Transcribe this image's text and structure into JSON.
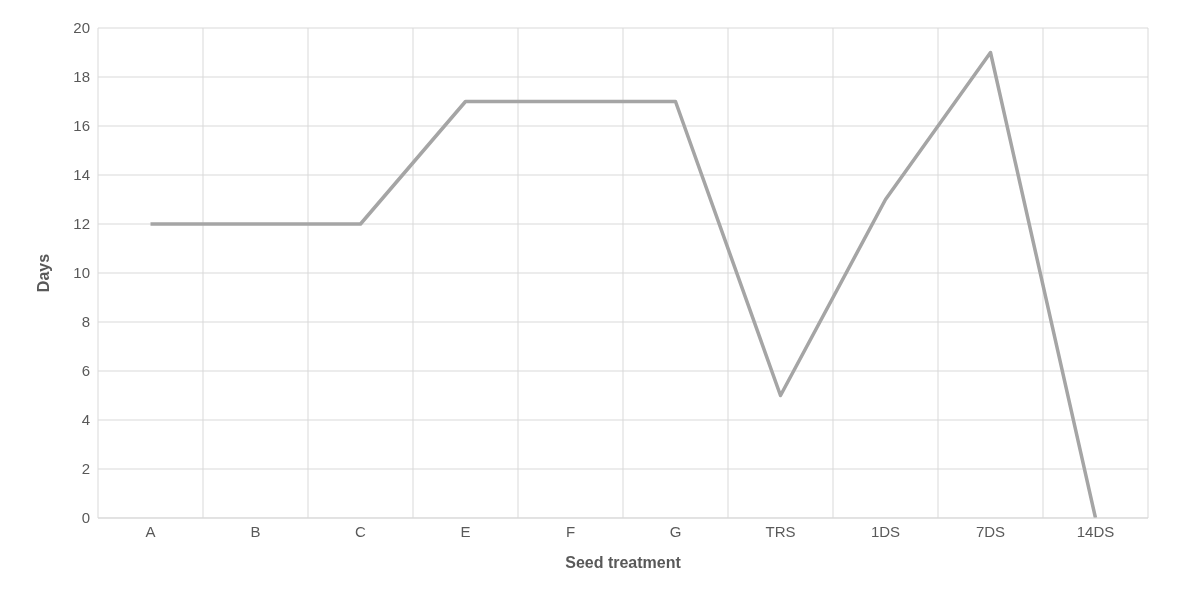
{
  "chart_data": {
    "type": "line",
    "xlabel": "Seed treatment",
    "ylabel": "Days",
    "categories": [
      "A",
      "B",
      "C",
      "E",
      "F",
      "G",
      "TRS",
      "1DS",
      "7DS",
      "14DS"
    ],
    "values": [
      12,
      12,
      12,
      17,
      17,
      17,
      5,
      13,
      19,
      0
    ],
    "color": "#a5a5a5",
    "ylim": [
      0,
      20
    ],
    "yticks": [
      0,
      2,
      4,
      6,
      8,
      10,
      12,
      14,
      16,
      18,
      20
    ],
    "grid": true,
    "marker": "none",
    "line_style": "solid"
  }
}
